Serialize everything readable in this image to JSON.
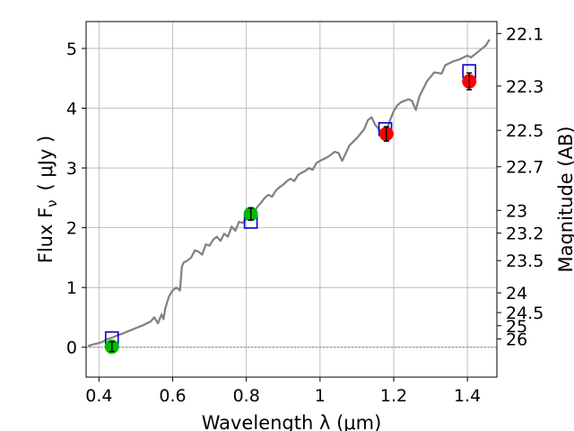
{
  "chart_data": {
    "type": "line",
    "xlabel": "Wavelength  λ (μm)",
    "ylabel_main": "Flux  F",
    "ylabel_sub": "ν",
    "ylabel_unit": "( μJy )",
    "y2label": "Magnitude (AB)",
    "xlim": [
      0.365,
      1.48
    ],
    "ylim": [
      -0.5,
      5.45
    ],
    "grid": true,
    "xticks": [
      0.4,
      0.6,
      0.8,
      1.0,
      1.2,
      1.4
    ],
    "xtick_labels": [
      "0.4",
      "0.6",
      "0.8",
      "1",
      "1.2",
      "1.4"
    ],
    "yticks": [
      0,
      1,
      2,
      3,
      4,
      5
    ],
    "ytick_labels": [
      "0",
      "1",
      "2",
      "3",
      "4",
      "5"
    ],
    "y2ticks": [
      {
        "label": "22.1",
        "flux": 5.25
      },
      {
        "label": "22.3",
        "flux": 4.37
      },
      {
        "label": "22.5",
        "flux": 3.63
      },
      {
        "label": "22.7",
        "flux": 3.02
      },
      {
        "label": "23",
        "flux": 2.29
      },
      {
        "label": "23.2",
        "flux": 1.91
      },
      {
        "label": "23.5",
        "flux": 1.45
      },
      {
        "label": "24",
        "flux": 0.91
      },
      {
        "label": "24.5",
        "flux": 0.58
      },
      {
        "label": "25",
        "flux": 0.36
      },
      {
        "label": "26",
        "flux": 0.14
      }
    ],
    "series": [
      {
        "kind": "model-spectrum",
        "color": "#808080",
        "x": [
          0.37,
          0.385,
          0.4,
          0.41,
          0.42,
          0.43,
          0.44,
          0.45,
          0.46,
          0.48,
          0.5,
          0.52,
          0.54,
          0.55,
          0.56,
          0.57,
          0.575,
          0.58,
          0.59,
          0.6,
          0.61,
          0.62,
          0.625,
          0.63,
          0.64,
          0.65,
          0.66,
          0.67,
          0.68,
          0.69,
          0.7,
          0.71,
          0.72,
          0.73,
          0.74,
          0.75,
          0.76,
          0.77,
          0.78,
          0.79,
          0.8,
          0.81,
          0.82,
          0.83,
          0.84,
          0.85,
          0.86,
          0.87,
          0.88,
          0.89,
          0.9,
          0.91,
          0.92,
          0.93,
          0.94,
          0.95,
          0.96,
          0.97,
          0.98,
          0.99,
          1.0,
          1.02,
          1.04,
          1.05,
          1.06,
          1.08,
          1.1,
          1.12,
          1.13,
          1.14,
          1.15,
          1.16,
          1.17,
          1.18,
          1.19,
          1.2,
          1.21,
          1.22,
          1.24,
          1.25,
          1.26,
          1.27,
          1.29,
          1.31,
          1.33,
          1.34,
          1.36,
          1.38,
          1.4,
          1.41,
          1.43,
          1.45,
          1.46
        ],
        "y": [
          0.02,
          0.05,
          0.07,
          0.09,
          0.13,
          0.15,
          0.17,
          0.2,
          0.22,
          0.27,
          0.32,
          0.37,
          0.43,
          0.5,
          0.4,
          0.55,
          0.47,
          0.65,
          0.85,
          0.95,
          1.0,
          0.95,
          1.35,
          1.42,
          1.45,
          1.5,
          1.62,
          1.6,
          1.55,
          1.72,
          1.7,
          1.8,
          1.85,
          1.78,
          1.9,
          1.85,
          2.02,
          1.95,
          2.1,
          2.08,
          2.15,
          2.28,
          2.25,
          2.35,
          2.42,
          2.5,
          2.55,
          2.52,
          2.62,
          2.68,
          2.72,
          2.78,
          2.82,
          2.78,
          2.88,
          2.92,
          2.95,
          3.0,
          2.97,
          3.08,
          3.12,
          3.18,
          3.27,
          3.25,
          3.12,
          3.38,
          3.5,
          3.65,
          3.8,
          3.85,
          3.72,
          3.65,
          3.6,
          3.62,
          3.8,
          3.95,
          4.05,
          4.1,
          4.15,
          4.12,
          3.97,
          4.2,
          4.45,
          4.6,
          4.58,
          4.72,
          4.78,
          4.82,
          4.88,
          4.85,
          4.95,
          5.05,
          5.15
        ]
      }
    ],
    "model_photometry": {
      "color": "#0000cc",
      "marker": "square",
      "points": [
        {
          "x": 0.435,
          "y": 0.15
        },
        {
          "x": 0.812,
          "y": 2.1
        },
        {
          "x": 1.177,
          "y": 3.65
        },
        {
          "x": 1.405,
          "y": 4.62
        }
      ]
    },
    "observed_photometry": {
      "marker": "circle",
      "points": [
        {
          "x": 0.435,
          "y": 0.01,
          "err": 0.08,
          "color": "#00bb00"
        },
        {
          "x": 0.812,
          "y": 2.23,
          "err": 0.1,
          "color": "#00bb00"
        },
        {
          "x": 1.18,
          "y": 3.57,
          "err": 0.12,
          "color": "#ff0000"
        },
        {
          "x": 1.405,
          "y": 4.45,
          "err": 0.14,
          "color": "#ff0000"
        }
      ]
    }
  }
}
